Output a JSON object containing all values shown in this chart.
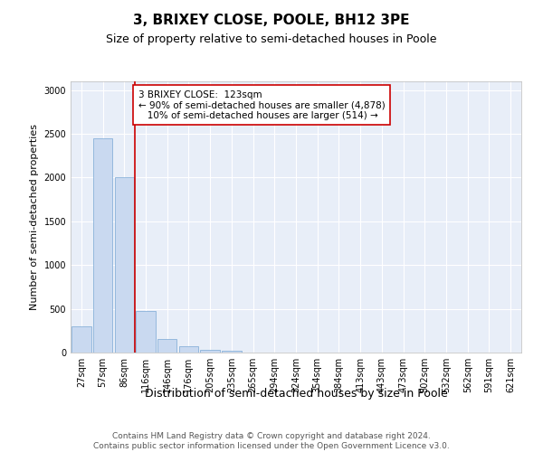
{
  "title": "3, BRIXEY CLOSE, POOLE, BH12 3PE",
  "subtitle": "Size of property relative to semi-detached houses in Poole",
  "xlabel": "Distribution of semi-detached houses by size in Poole",
  "ylabel": "Number of semi-detached properties",
  "categories": [
    "27sqm",
    "57sqm",
    "86sqm",
    "116sqm",
    "146sqm",
    "176sqm",
    "205sqm",
    "235sqm",
    "265sqm",
    "294sqm",
    "324sqm",
    "354sqm",
    "384sqm",
    "413sqm",
    "443sqm",
    "473sqm",
    "502sqm",
    "532sqm",
    "562sqm",
    "591sqm",
    "621sqm"
  ],
  "values": [
    300,
    2450,
    2000,
    480,
    150,
    70,
    35,
    20,
    5,
    2,
    1,
    0,
    0,
    0,
    0,
    0,
    0,
    0,
    0,
    0,
    0
  ],
  "bar_color": "#c9d9f0",
  "bar_edge_color": "#7aa8d4",
  "vline_color": "#cc0000",
  "vline_x_index": 3,
  "annotation_text": "3 BRIXEY CLOSE:  123sqm\n← 90% of semi-detached houses are smaller (4,878)\n   10% of semi-detached houses are larger (514) →",
  "annotation_box_color": "#ffffff",
  "annotation_box_edge": "#cc0000",
  "ylim": [
    0,
    3100
  ],
  "yticks": [
    0,
    500,
    1000,
    1500,
    2000,
    2500,
    3000
  ],
  "background_color": "#e8eef8",
  "footer_text": "Contains HM Land Registry data © Crown copyright and database right 2024.\nContains public sector information licensed under the Open Government Licence v3.0.",
  "title_fontsize": 11,
  "subtitle_fontsize": 9,
  "axis_label_fontsize": 8,
  "tick_fontsize": 7,
  "annotation_fontsize": 7.5,
  "footer_fontsize": 6.5
}
